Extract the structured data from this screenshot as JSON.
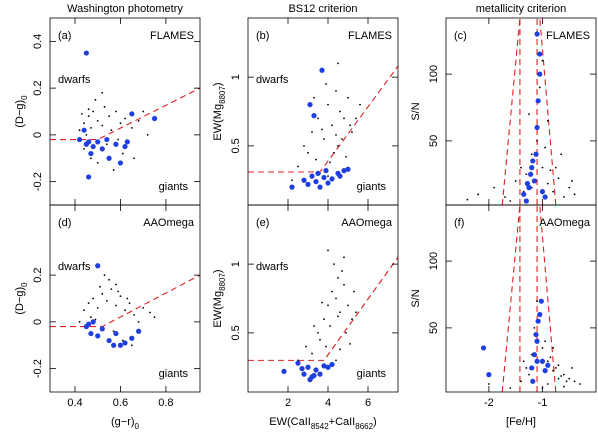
{
  "chart_data": [
    {
      "type": "scatter",
      "title": "Washington photometry",
      "panel": "(a)",
      "survey": "FLAMES",
      "upper_note": "dwarfs",
      "lower_note": "giants",
      "ylabel": [
        "(D−g)",
        "0"
      ],
      "xlim": [
        0.29,
        0.95
      ],
      "ylim": [
        -0.3,
        0.5
      ],
      "xticks": [
        0.4,
        0.6,
        0.8
      ],
      "yticks": [
        -0.2,
        0,
        0.2,
        0.4
      ],
      "series": [
        {
          "color": "#000000",
          "x": [
            0.42,
            0.44,
            0.45,
            0.46,
            0.47,
            0.48,
            0.5,
            0.52,
            0.53,
            0.55,
            0.56,
            0.58,
            0.6,
            0.62,
            0.65,
            0.68,
            0.7,
            0.44,
            0.47,
            0.5,
            0.54,
            0.57,
            0.61,
            0.49,
            0.52,
            0.46,
            0.59,
            0.66,
            0.72,
            0.43
          ],
          "y": [
            0.02,
            0.05,
            0.0,
            0.08,
            0.03,
            0.1,
            0.06,
            0.04,
            0.12,
            0.08,
            0.02,
            0.1,
            0.05,
            0.07,
            0.03,
            0.06,
            0.1,
            -0.06,
            -0.1,
            -0.12,
            -0.04,
            -0.15,
            -0.08,
            0.15,
            0.18,
            0.11,
            -0.02,
            -0.1,
            0.0,
            0.09
          ]
        },
        {
          "color": "#1f3fe0",
          "x": [
            0.42,
            0.44,
            0.45,
            0.46,
            0.48,
            0.5,
            0.52,
            0.55,
            0.58,
            0.6,
            0.63,
            0.47,
            0.45,
            0.54,
            0.62,
            0.65,
            0.75,
            0.46
          ],
          "y": [
            -0.02,
            0.02,
            -0.04,
            -0.03,
            -0.05,
            -0.03,
            -0.06,
            -0.1,
            -0.04,
            -0.12,
            -0.03,
            -0.08,
            0.35,
            -0.02,
            -0.05,
            0.09,
            0.07,
            -0.18
          ]
        }
      ],
      "lines": [
        {
          "color": "#e02020",
          "x": [
            0.29,
            0.5,
            0.95
          ],
          "y": [
            -0.02,
            -0.02,
            0.2
          ]
        }
      ]
    },
    {
      "type": "scatter",
      "title": "BS12 criterion",
      "panel": "(b)",
      "survey": "FLAMES",
      "upper_note": "dwarfs",
      "lower_note": "giants",
      "ylabel": [
        "EW(Mg",
        "8807",
        ")"
      ],
      "xlim": [
        0,
        7.5
      ],
      "ylim": [
        0.07,
        1.43
      ],
      "xticks": [
        2,
        4,
        6
      ],
      "yticks": [
        0.5,
        1
      ],
      "series": [
        {
          "color": "#000000",
          "x": [
            2.5,
            3,
            3.2,
            3.5,
            3.8,
            4,
            4.2,
            4.4,
            4.5,
            4.6,
            4.8,
            5,
            5.2,
            3.4,
            3.9,
            4.3,
            4.7,
            5.1,
            2.8,
            3.6,
            4.1,
            4.9,
            5.4,
            3.3,
            4.5,
            4.0,
            3.7,
            4.4,
            5.6,
            2.2
          ],
          "y": [
            0.35,
            0.45,
            0.6,
            0.7,
            0.55,
            0.8,
            0.65,
            0.9,
            0.5,
            0.75,
            0.7,
            0.85,
            0.6,
            0.4,
            0.95,
            0.45,
            0.55,
            0.65,
            0.5,
            0.3,
            0.38,
            0.42,
            0.7,
            0.85,
            1.1,
            0.28,
            0.62,
            0.58,
            0.8,
            0.25
          ]
        },
        {
          "color": "#1f3fe0",
          "x": [
            2.2,
            2.8,
            3,
            3.2,
            3.4,
            3.5,
            3.6,
            3.8,
            4,
            4.2,
            4.5,
            4.8,
            5,
            3.1,
            3.3,
            3.9,
            4.6,
            3.7
          ],
          "y": [
            0.2,
            0.25,
            0.22,
            0.28,
            0.24,
            0.3,
            0.2,
            0.27,
            0.23,
            0.26,
            0.3,
            0.32,
            0.33,
            0.8,
            0.72,
            0.32,
            0.28,
            1.05
          ]
        }
      ],
      "lines": [
        {
          "color": "#e02020",
          "x": [
            0,
            3.6,
            7.5
          ],
          "y": [
            0.31,
            0.31,
            1.08
          ]
        }
      ]
    },
    {
      "type": "scatter",
      "title": "metallicity criterion",
      "panel": "(c)",
      "survey": "FLAMES",
      "ylabel": [
        "S/N"
      ],
      "xlim": [
        -2.8,
        0
      ],
      "ylim": [
        2,
        142
      ],
      "xticks": [
        -2,
        -1
      ],
      "yticks": [
        50,
        100
      ],
      "series": [
        {
          "color": "#000000",
          "x": [
            -2.2,
            -1.9,
            -1.7,
            -1.5,
            -1.3,
            -1.2,
            -1.1,
            -1.0,
            -0.9,
            -0.8,
            -0.7,
            -0.6,
            -0.5,
            -0.4,
            -1.25,
            -1.05,
            -0.95,
            -1.15,
            -0.85,
            -1.35,
            -1.0,
            -0.75,
            -1.6,
            -2.4,
            -0.45,
            -1.1,
            -0.9,
            -1.2,
            -0.65,
            -1.4
          ],
          "y": [
            10,
            15,
            8,
            20,
            25,
            40,
            60,
            30,
            18,
            12,
            22,
            8,
            15,
            10,
            70,
            90,
            45,
            35,
            28,
            12,
            110,
            30,
            5,
            6,
            20,
            50,
            65,
            15,
            40,
            30
          ]
        },
        {
          "color": "#1f3fe0",
          "x": [
            -1.35,
            -1.3,
            -1.25,
            -1.2,
            -1.15,
            -1.12,
            -1.1,
            -1.08,
            -1.05,
            -1.0,
            -0.95,
            -1.18,
            -1.22,
            -1.1,
            -1.05,
            -1.28
          ],
          "y": [
            10,
            5,
            15,
            30,
            20,
            40,
            60,
            80,
            100,
            12,
            8,
            35,
            25,
            130,
            115,
            18
          ]
        }
      ],
      "lines": [
        {
          "color": "#e02020",
          "x": [
            -1.42,
            -1.42
          ],
          "y": [
            2,
            142
          ]
        },
        {
          "color": "#e02020",
          "x": [
            -1.1,
            -1.1
          ],
          "y": [
            2,
            142
          ]
        },
        {
          "color": "#e02020",
          "x": [
            -1.75,
            -1.42
          ],
          "y": [
            2,
            142
          ]
        },
        {
          "color": "#e02020",
          "x": [
            -0.75,
            -1.05
          ],
          "y": [
            2,
            142
          ]
        }
      ]
    },
    {
      "type": "scatter",
      "panel": "(d)",
      "survey": "AAOmega",
      "upper_note": "dwarfs",
      "lower_note": "giants",
      "ylabel": [
        "(D−g)",
        "0"
      ],
      "xlabel": [
        "(g−r)",
        "0"
      ],
      "xlim": [
        0.29,
        0.95
      ],
      "ylim": [
        -0.3,
        0.5
      ],
      "xticks": [
        0.4,
        0.6,
        0.8
      ],
      "yticks": [
        -0.2,
        0,
        0.2
      ],
      "series": [
        {
          "color": "#000000",
          "x": [
            0.44,
            0.46,
            0.48,
            0.5,
            0.52,
            0.54,
            0.56,
            0.58,
            0.6,
            0.62,
            0.64,
            0.66,
            0.7,
            0.47,
            0.51,
            0.55,
            0.59,
            0.63,
            0.68,
            0.73,
            0.45,
            0.5,
            0.57,
            0.61,
            0.53,
            0.49,
            0.65,
            0.42,
            0.75,
            0.58
          ],
          "y": [
            0.05,
            0.08,
            0.1,
            0.06,
            0.12,
            0.09,
            0.14,
            0.07,
            0.11,
            0.05,
            0.08,
            0.03,
            0.06,
            0.02,
            0.15,
            0.18,
            0.13,
            0.1,
            0.0,
            0.04,
            -0.02,
            -0.06,
            -0.04,
            -0.08,
            0.2,
            0.01,
            -0.1,
            0.0,
            0.02,
            0.16
          ]
        },
        {
          "color": "#1f3fe0",
          "x": [
            0.45,
            0.47,
            0.48,
            0.5,
            0.52,
            0.55,
            0.58,
            0.6,
            0.62,
            0.65,
            0.68,
            0.5,
            0.46,
            0.57
          ],
          "y": [
            -0.02,
            -0.05,
            0.0,
            -0.06,
            -0.03,
            -0.08,
            -0.05,
            -0.1,
            -0.09,
            -0.07,
            -0.04,
            0.24,
            -0.01,
            -0.1
          ]
        }
      ],
      "lines": [
        {
          "color": "#e02020",
          "x": [
            0.29,
            0.52,
            0.95
          ],
          "y": [
            -0.02,
            -0.02,
            0.2
          ]
        }
      ]
    },
    {
      "type": "scatter",
      "panel": "(e)",
      "survey": "AAOmega",
      "upper_note": "dwarfs",
      "lower_note": "giants",
      "ylabel": [
        "EW(Mg",
        "8807",
        ")"
      ],
      "xlabel": [
        "EW(CaII",
        "8542",
        "+CaII",
        "8662",
        ")"
      ],
      "xlim": [
        0,
        7.5
      ],
      "ylim": [
        0.07,
        1.43
      ],
      "xticks": [
        2,
        4,
        6
      ],
      "yticks": [
        0.5,
        1
      ],
      "series": [
        {
          "color": "#000000",
          "x": [
            3.5,
            3.8,
            4,
            4.2,
            4.4,
            4.5,
            4.6,
            4.8,
            5,
            5.2,
            4.3,
            4.7,
            4.1,
            3.9,
            4.9,
            5.4,
            3.2,
            3.6,
            4.4,
            4.6,
            5.1,
            2.9,
            3.3,
            4.0,
            4.8,
            4.5,
            5.3,
            3.7,
            4.2,
            2.5
          ],
          "y": [
            0.5,
            0.6,
            0.7,
            0.8,
            0.75,
            0.9,
            0.65,
            0.85,
            0.7,
            0.6,
            1.0,
            0.95,
            0.55,
            0.4,
            0.5,
            0.65,
            0.35,
            0.45,
            0.3,
            0.38,
            0.42,
            0.4,
            0.55,
            1.1,
            1.05,
            0.62,
            0.8,
            0.72,
            0.28,
            0.3
          ]
        },
        {
          "color": "#1f3fe0",
          "x": [
            1.8,
            2.5,
            2.8,
            3.0,
            3.2,
            3.4,
            3.6,
            3.8,
            4.0,
            4.2,
            3.1,
            3.3,
            2.7
          ],
          "y": [
            0.22,
            0.28,
            0.2,
            0.25,
            0.18,
            0.23,
            0.2,
            0.26,
            0.25,
            0.27,
            0.16,
            0.19,
            0.24
          ]
        }
      ],
      "lines": [
        {
          "color": "#e02020",
          "x": [
            0,
            3.8,
            7.5
          ],
          "y": [
            0.3,
            0.3,
            1.05
          ]
        }
      ]
    },
    {
      "type": "scatter",
      "panel": "(f)",
      "survey": "AAOmega",
      "ylabel": [
        "S/N"
      ],
      "xlabel": [
        "[Fe/H]"
      ],
      "xlim": [
        -2.8,
        0
      ],
      "ylim": [
        2,
        142
      ],
      "xticks": [
        -2,
        -1
      ],
      "yticks": [
        50,
        100
      ],
      "series": [
        {
          "color": "#000000",
          "x": [
            -1.4,
            -1.3,
            -1.2,
            -1.1,
            -1.0,
            -0.9,
            -0.8,
            -0.7,
            -0.6,
            -0.5,
            -0.4,
            -0.3,
            -1.15,
            -1.05,
            -0.95,
            -0.85,
            -0.75,
            -0.65,
            -1.25,
            -0.55,
            -1.0,
            -0.9,
            -0.45,
            -1.1,
            -0.8,
            -1.35,
            -0.7,
            -0.6,
            -1.6,
            -2.0
          ],
          "y": [
            10,
            20,
            30,
            45,
            35,
            25,
            18,
            22,
            15,
            12,
            10,
            8,
            50,
            60,
            40,
            28,
            20,
            14,
            15,
            10,
            5,
            8,
            20,
            70,
            35,
            25,
            12,
            6,
            5,
            8
          ]
        },
        {
          "color": "#1f3fe0",
          "x": [
            -2.1,
            -2.0,
            -1.2,
            -1.15,
            -1.1,
            -1.08,
            -1.05,
            -1.0,
            -0.95,
            -1.12,
            -1.18,
            -1.02,
            -1.1,
            -0.9
          ],
          "y": [
            35,
            15,
            20,
            30,
            40,
            55,
            60,
            25,
            18,
            45,
            10,
            70,
            25,
            22
          ]
        }
      ],
      "lines": [
        {
          "color": "#e02020",
          "x": [
            -1.42,
            -1.42
          ],
          "y": [
            2,
            142
          ]
        },
        {
          "color": "#e02020",
          "x": [
            -1.1,
            -1.1
          ],
          "y": [
            2,
            142
          ]
        },
        {
          "color": "#e02020",
          "x": [
            -1.75,
            -1.42
          ],
          "y": [
            2,
            142
          ]
        },
        {
          "color": "#e02020",
          "x": [
            -0.75,
            -1.05
          ],
          "y": [
            2,
            142
          ]
        }
      ]
    }
  ]
}
